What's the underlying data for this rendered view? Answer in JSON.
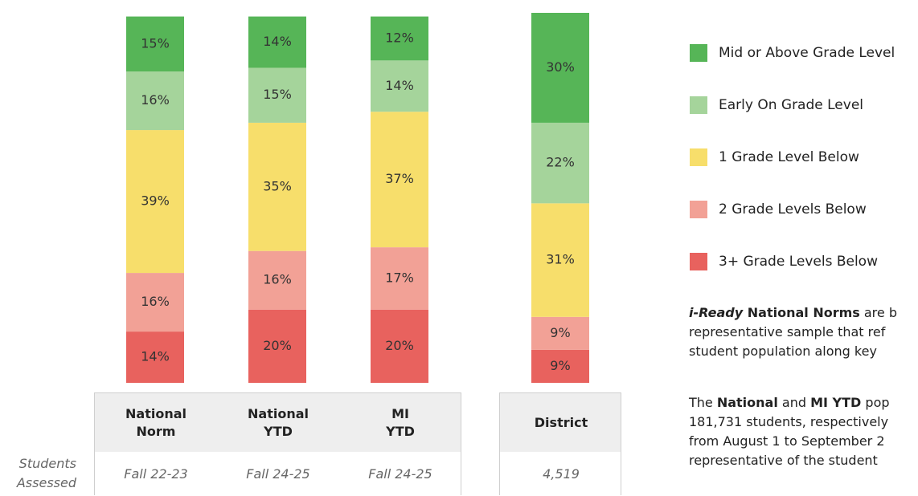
{
  "chart_data": {
    "type": "stacked_bar",
    "categories": [
      "National Norm",
      "National YTD",
      "MI YTD",
      "District"
    ],
    "series": [
      {
        "name": "3+ Grade Levels Below",
        "color": "#e8625e",
        "values": [
          14,
          20,
          20,
          9
        ],
        "value_labels": [
          "14%",
          "20%",
          "20%",
          "9%"
        ]
      },
      {
        "name": "2 Grade Levels Below",
        "color": "#f2a196",
        "values": [
          16,
          16,
          17,
          9
        ],
        "value_labels": [
          "16%",
          "16%",
          "17%",
          "9%"
        ]
      },
      {
        "name": "1 Grade Level Below",
        "color": "#f7de6b",
        "values": [
          39,
          35,
          37,
          31
        ],
        "value_labels": [
          "39%",
          "35%",
          "37%",
          "31%"
        ]
      },
      {
        "name": "Early On Grade Level",
        "color": "#a5d49b",
        "values": [
          16,
          15,
          14,
          22
        ],
        "value_labels": [
          "16%",
          "15%",
          "14%",
          "22%"
        ]
      },
      {
        "name": "Mid or Above Grade Level",
        "color": "#56b557",
        "values": [
          15,
          14,
          12,
          30
        ],
        "value_labels": [
          "15%",
          "14%",
          "12%",
          "30%"
        ]
      }
    ]
  },
  "table": {
    "row_label": "Students Assessed",
    "row_values": [
      "Fall 22-23",
      "Fall 24-25",
      "Fall 24-25",
      "4,519"
    ]
  },
  "notes": {
    "p1": [
      {
        "parts": [
          {
            "text": "i-Ready",
            "style": "bi"
          },
          {
            "text": " National Norms",
            "style": "b"
          },
          {
            "text": " are b",
            "style": ""
          }
        ]
      },
      {
        "parts": [
          {
            "text": "representative sample that ref",
            "style": ""
          }
        ]
      },
      {
        "parts": [
          {
            "text": "student population along key",
            "style": ""
          }
        ]
      }
    ],
    "p2": [
      {
        "parts": [
          {
            "text": "The ",
            "style": ""
          },
          {
            "text": "National",
            "style": "b"
          },
          {
            "text": " and ",
            "style": ""
          },
          {
            "text": "MI YTD",
            "style": "b"
          },
          {
            "text": " pop",
            "style": ""
          }
        ]
      },
      {
        "parts": [
          {
            "text": "181,731 students, respectively",
            "style": ""
          }
        ]
      },
      {
        "parts": [
          {
            "text": "from August 1 to September 2",
            "style": ""
          }
        ]
      },
      {
        "parts": [
          {
            "text": "representative of the student",
            "style": ""
          }
        ]
      }
    ]
  }
}
